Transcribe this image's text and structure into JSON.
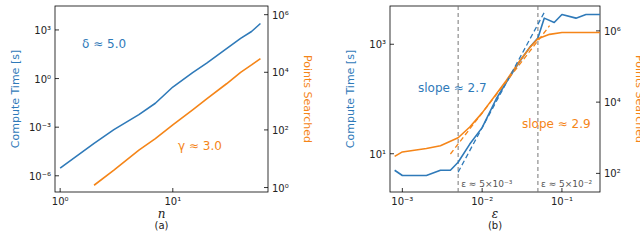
{
  "chart_data": [
    {
      "type": "line",
      "title": "(a)",
      "x_label": "n",
      "y_label": "Compute Time [s]",
      "y2_label": "Points Searched",
      "log": true,
      "xlim": [
        0.9,
        70
      ],
      "ylim": [
        1e-07,
        30000
      ],
      "y2lim": [
        0.7,
        2000000
      ],
      "xticks": [
        {
          "value": 1,
          "label": "10⁰"
        },
        {
          "value": 10,
          "label": "10¹"
        }
      ],
      "yticks": [
        {
          "value": 1e-06,
          "label": "10⁻⁶"
        },
        {
          "value": 0.001,
          "label": "10⁻³"
        },
        {
          "value": 1,
          "label": "10⁰"
        },
        {
          "value": 1000,
          "label": "10³"
        }
      ],
      "y2ticks": [
        {
          "value": 1,
          "label": "10⁰"
        },
        {
          "value": 100,
          "label": "10²"
        },
        {
          "value": 10000,
          "label": "10⁴"
        },
        {
          "value": 1000000,
          "label": "10⁶"
        }
      ],
      "series": [
        {
          "color": "#2f7ab9",
          "line_style": "solid",
          "x": [
            1,
            2,
            3,
            5,
            7,
            10,
            15,
            20,
            30,
            40,
            50,
            60
          ],
          "values": [
            3e-06,
            0.0001,
            0.0007,
            0.006,
            0.03,
            0.3,
            2.3,
            9,
            70,
            300,
            800,
            2500
          ]
        },
        {
          "color": "#f58518",
          "line_style": "solid",
          "axis": "y2",
          "x": [
            2,
            3,
            5,
            7,
            10,
            15,
            20,
            30,
            40,
            50,
            60
          ],
          "values": [
            1.2,
            4,
            20,
            50,
            150,
            500,
            1200,
            4000,
            10000,
            18000,
            30000
          ]
        }
      ],
      "annotations": [
        {
          "text": "δ ≈ 5.0",
          "color": "#2f7ab9"
        },
        {
          "text": "γ ≈ 3.0",
          "color": "#f58518"
        }
      ]
    },
    {
      "type": "line",
      "title": "(b)",
      "x_label": "ε",
      "y_label": "Compute Time [s]",
      "y2_label": "Points Searched",
      "log": true,
      "xlim": [
        0.0007,
        0.3
      ],
      "ylim": [
        2,
        5000
      ],
      "y2lim": [
        30,
        5000000
      ],
      "xticks": [
        {
          "value": 0.001,
          "label": "10⁻³"
        },
        {
          "value": 0.01,
          "label": "10⁻²"
        },
        {
          "value": 0.1,
          "label": "10⁻¹"
        }
      ],
      "yticks": [
        {
          "value": 10,
          "label": "10¹"
        },
        {
          "value": 1000,
          "label": "10³"
        }
      ],
      "y2ticks": [
        {
          "value": 100,
          "label": "10²"
        },
        {
          "value": 10000,
          "label": "10⁴"
        },
        {
          "value": 1000000,
          "label": "10⁶"
        }
      ],
      "series": [
        {
          "color": "#2f7ab9",
          "line_style": "solid",
          "x": [
            0.0008,
            0.001,
            0.002,
            0.003,
            0.004,
            0.005,
            0.007,
            0.01,
            0.015,
            0.02,
            0.03,
            0.04,
            0.05,
            0.06,
            0.08,
            0.1,
            0.15,
            0.2,
            0.3
          ],
          "values": [
            5,
            4,
            4,
            5,
            5,
            7,
            15,
            30,
            100,
            200,
            500,
            900,
            1300,
            3000,
            2500,
            3500,
            3000,
            3500,
            3500
          ]
        },
        {
          "color": "#f58518",
          "line_style": "solid",
          "axis": "y2",
          "x": [
            0.0008,
            0.001,
            0.002,
            0.003,
            0.005,
            0.007,
            0.01,
            0.02,
            0.03,
            0.04,
            0.05,
            0.07,
            0.1,
            0.3
          ],
          "values": [
            300,
            400,
            500,
            600,
            1000,
            2000,
            5000,
            40000,
            150000,
            350000,
            600000,
            800000,
            900000,
            900000
          ]
        },
        {
          "color": "#2f7ab9",
          "line_style": "dashed",
          "x": [
            0.005,
            0.06
          ],
          "values": [
            4.6,
            3800
          ]
        },
        {
          "color": "#f58518",
          "line_style": "dashed",
          "axis": "y2",
          "x": [
            0.004,
            0.07
          ],
          "values": [
            350,
            1400000
          ]
        }
      ],
      "vlines": [
        {
          "value": 0.005,
          "label": "ε ≈ 5×10⁻³"
        },
        {
          "value": 0.05,
          "label": "ε ≈ 5×10⁻²"
        }
      ],
      "annotations": [
        {
          "text": "slope ≈ 2.7",
          "color": "#2f7ab9"
        },
        {
          "text": "slope ≈ 2.9",
          "color": "#f58518"
        }
      ]
    }
  ]
}
